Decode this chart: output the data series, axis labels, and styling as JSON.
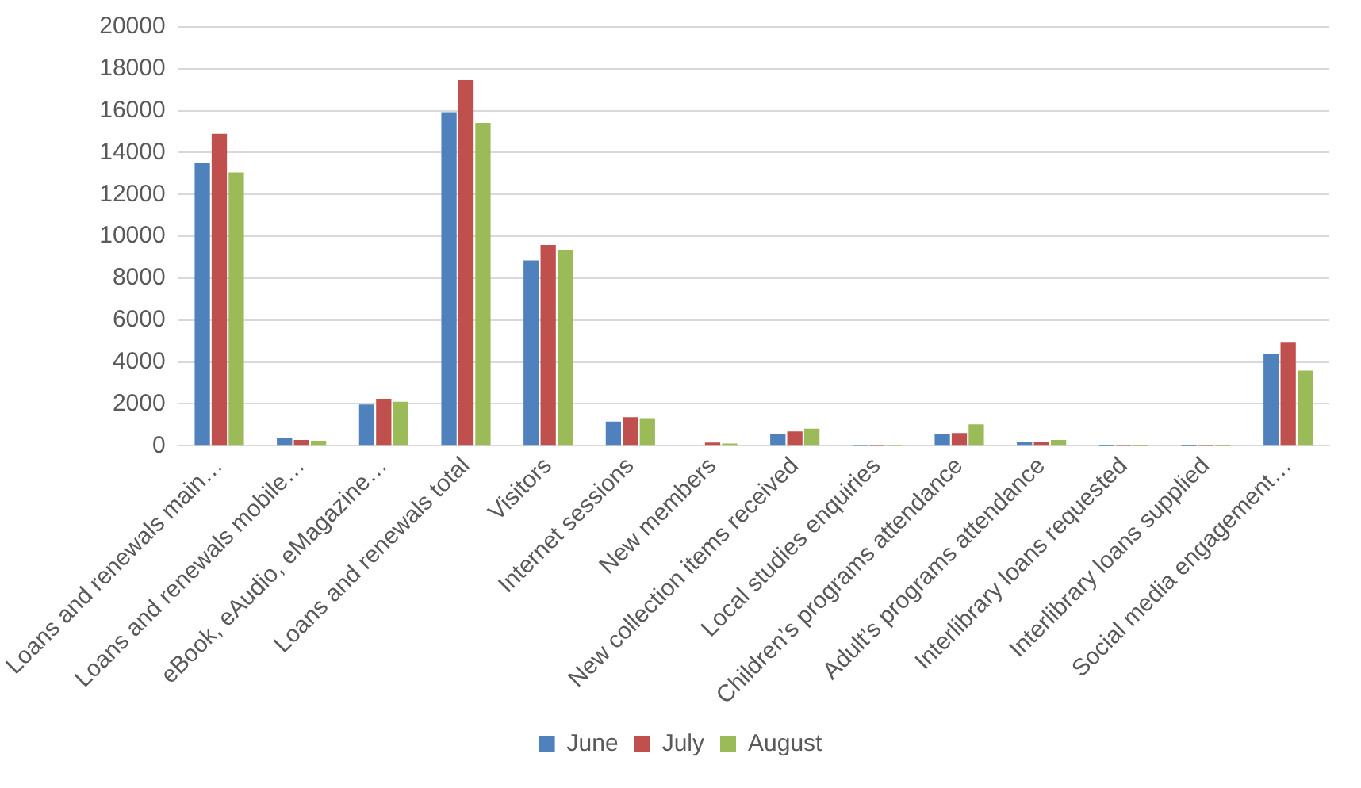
{
  "chart_data": {
    "type": "bar",
    "categories": [
      "Loans and renewals main…",
      "Loans and renewals mobile…",
      "eBook, eAudio, eMagazine…",
      "Loans and renewals total",
      "Visitors",
      "Internet sessions",
      "New members",
      "New collection items received",
      "Local studies enquiries",
      "Children’s programs attendance",
      "Adult’s programs attendance",
      "Interlibrary loans requested",
      "Interlibrary loans supplied",
      "Social media engagement…"
    ],
    "series": [
      {
        "name": "June",
        "color": "#4f81bd",
        "values": [
          13500,
          370,
          1970,
          15930,
          8850,
          1150,
          null,
          540,
          20,
          540,
          200,
          10,
          10,
          4370
        ]
      },
      {
        "name": "July",
        "color": "#c0504d",
        "values": [
          14900,
          270,
          2240,
          17460,
          9590,
          1360,
          150,
          680,
          20,
          610,
          200,
          20,
          20,
          4920
        ]
      },
      {
        "name": "August",
        "color": "#9bbb59",
        "values": [
          13050,
          240,
          2100,
          15420,
          9360,
          1320,
          100,
          810,
          20,
          1020,
          270,
          10,
          10,
          3590
        ]
      }
    ],
    "ylim": [
      0,
      20000
    ],
    "yticks": [
      0,
      2000,
      4000,
      6000,
      8000,
      10000,
      12000,
      14000,
      16000,
      18000,
      20000
    ],
    "grid": "y",
    "legend": "bottom"
  }
}
